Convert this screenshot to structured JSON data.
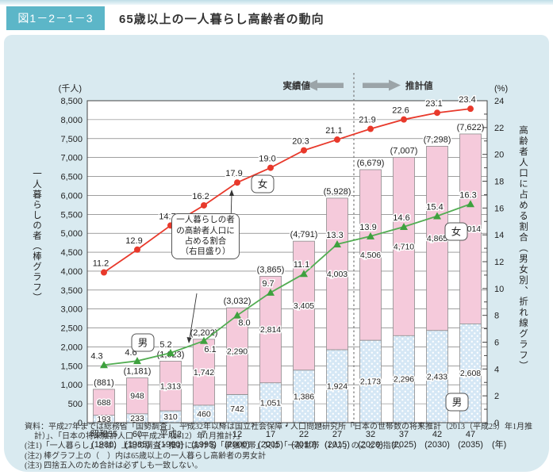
{
  "figure": {
    "tag": "図1－2－1－3",
    "title": "65歳以上の一人暮らし高齢者の動向"
  },
  "colors": {
    "tag_bg": "#5cb6c8",
    "panel_bg": "#d9eaf0",
    "female_bar": "#f5cadb",
    "male_bar": "#d5e7f5",
    "female_line": "#e8392b",
    "male_line": "#53ad53",
    "marker_green": "#3ea13e",
    "arrow_gray": "#9ba4a8"
  },
  "chart_data": {
    "type": "bar",
    "subtype": "stacked-bar-with-lines",
    "unit_left": "(千人)",
    "unit_right": "(%)",
    "unit_x": "(年)",
    "ylabel_left": "一人暮らしの者（棒グラフ）",
    "ylabel_right": "高齢者人口に占める割合（男女別、折れ線グラフ）",
    "ylim_left": [
      0,
      8500
    ],
    "ytick_step_left": 500,
    "ylim_right": [
      0,
      24
    ],
    "ytick_step_right": 2,
    "actual_label": "実績値",
    "forecast_label": "推計値",
    "forecast_start_index": 8,
    "categories_era": [
      "昭和55",
      "60",
      "平成2",
      "7",
      "12",
      "17",
      "22",
      "27",
      "32",
      "37",
      "42",
      "47"
    ],
    "categories_year": [
      "(1980)",
      "(1985)",
      "(1990)",
      "(1995)",
      "(2000)",
      "(2005)",
      "(2010)",
      "(2015)",
      "(2020)",
      "(2025)",
      "(2030)",
      "(2035)"
    ],
    "bar_total_labels": [
      "(881)",
      "(1,181)",
      "(1,623)",
      "(2,202)",
      "(3,032)",
      "(3,865)",
      "(4,791)",
      "(5,928)",
      "(6,679)",
      "(7,007)",
      "(7,298)",
      "(7,622)"
    ],
    "series": [
      {
        "name": "男（棒）",
        "type": "bar",
        "values": [
          193,
          233,
          310,
          460,
          742,
          1051,
          1386,
          1924,
          2173,
          2296,
          2433,
          2608
        ]
      },
      {
        "name": "女（棒）",
        "type": "bar",
        "values": [
          688,
          948,
          1313,
          1742,
          2290,
          2814,
          3405,
          4003,
          4506,
          4710,
          4865,
          5014
        ]
      },
      {
        "name": "女（折れ線）",
        "type": "line",
        "values": [
          11.2,
          12.9,
          14.7,
          16.2,
          17.9,
          19.0,
          20.3,
          21.1,
          21.9,
          22.6,
          23.1,
          23.4
        ]
      },
      {
        "name": "男（折れ線）",
        "type": "line",
        "values": [
          4.3,
          4.6,
          5.2,
          6.1,
          8.0,
          9.7,
          11.1,
          13.3,
          13.9,
          14.6,
          15.4,
          16.3
        ]
      }
    ],
    "series_tags": {
      "line_female": "女",
      "line_male": "男",
      "bar_female": "女",
      "bar_male": "男"
    },
    "callout": "一人暮らしの者\nの高齢者人口に\n占める割合\n（右目盛り）"
  },
  "notes": {
    "source": "資料：平成27年までは総務省「国勢調査」、平成32年以降は国立社会保障・人口問題研究所「日本の世帯数の将来推計（2013（平成25）年1月推計）」、「日本の将来推計人口（平成24（2012）年1月推計）」",
    "note1": "(注1)「一人暮らし」とは、上記の調査・推計における「単独世帯」又は「一般世帯（1人）」のことを指す。",
    "note2": "(注2) 棒グラフ上の（　）内は65歳以上の一人暮らし高齢者の男女計",
    "note3": "(注3) 四捨五入のため合計は必ずしも一致しない。"
  }
}
